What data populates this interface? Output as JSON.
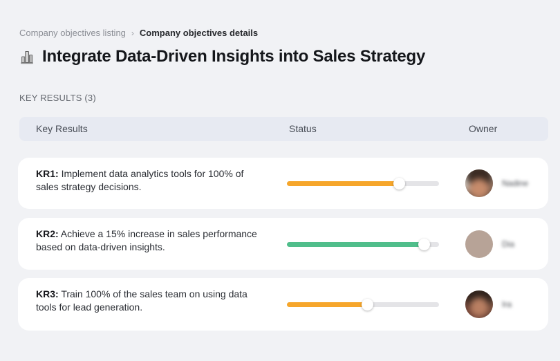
{
  "breadcrumb": {
    "items": [
      {
        "label": "Company objectives listing"
      },
      {
        "label": "Company objectives details"
      }
    ],
    "separator": "›"
  },
  "header": {
    "icon": "buildings-icon",
    "title": "Integrate Data-Driven Insights into Sales Strategy"
  },
  "section": {
    "label": "KEY RESULTS (3)"
  },
  "table": {
    "columns": [
      "Key Results",
      "Status",
      "Owner"
    ],
    "rows": [
      {
        "kr": "KR1:",
        "text": "Implement data analytics tools for 100% of sales strategy decisions.",
        "progress": 74,
        "status_color": "#F6A62B",
        "owner": "Nadine"
      },
      {
        "kr": "KR2:",
        "text": "Achieve a 15% increase in sales performance based on data-driven insights.",
        "progress": 90,
        "status_color": "#50BE8B",
        "owner": "Dia"
      },
      {
        "kr": "KR3:",
        "text": "Train 100% of the sales team on using data tools for lead generation.",
        "progress": 53,
        "status_color": "#F6A62B",
        "owner": "Ira"
      }
    ]
  },
  "colors": {
    "background": "#F1F2F5",
    "card": "#FFFFFF",
    "header_bar": "#E7EAF2",
    "track": "#E4E4E7",
    "status_orange": "#F6A62B",
    "status_green": "#50BE8B"
  }
}
